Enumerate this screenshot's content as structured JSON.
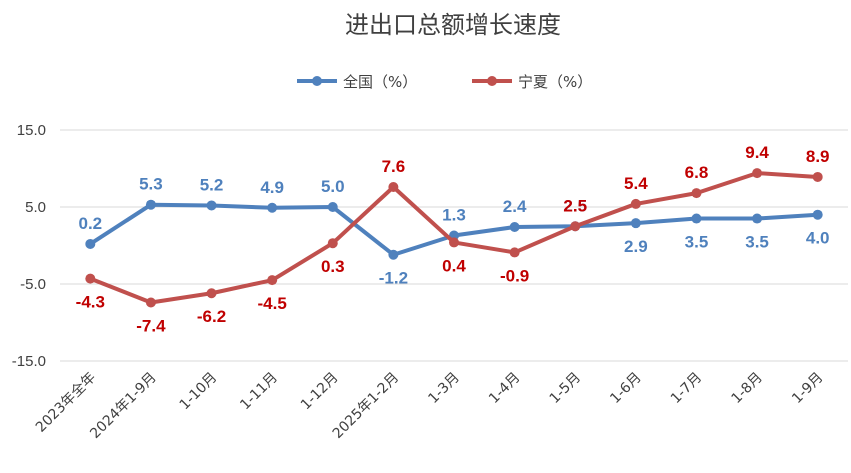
{
  "chart_data": {
    "type": "line",
    "title": "进出口总额增长速度",
    "categories": [
      "2023年全年",
      "2024年1-9月",
      "1-10月",
      "1-11月",
      "1-12月",
      "2025年1-2月",
      "1-3月",
      "1-4月",
      "1-5月",
      "1-6月",
      "1-7月",
      "1-8月",
      "1-9月"
    ],
    "series": [
      {
        "name": "全国（%）",
        "color": "#4f81bd",
        "values": [
          0.2,
          5.3,
          5.2,
          4.9,
          5.0,
          -1.2,
          1.3,
          2.4,
          2.5,
          2.9,
          3.5,
          3.5,
          4.0
        ],
        "labels": [
          "0.2",
          "5.3",
          "5.2",
          "4.9",
          "5.0",
          "-1.2",
          "1.3",
          "2.4",
          "2.5",
          "2.9",
          "3.5",
          "3.5",
          "4.0"
        ]
      },
      {
        "name": "宁夏（%）",
        "color": "#c0504d",
        "values": [
          -4.3,
          -7.4,
          -6.2,
          -4.5,
          0.3,
          7.6,
          0.4,
          -0.9,
          2.5,
          5.4,
          6.8,
          9.4,
          8.9
        ],
        "labels": [
          "-4.3",
          "-7.4",
          "-6.2",
          "-4.5",
          "0.3",
          "7.6",
          "0.4",
          "-0.9",
          "2.5",
          "5.4",
          "6.8",
          "9.4",
          "8.9"
        ]
      }
    ],
    "yticks": [
      "15.0",
      "5.0",
      "-5.0",
      "-15.0"
    ],
    "ylim": [
      -15,
      15
    ],
    "grid": true,
    "legend": "top-center",
    "label_colors": {
      "national": "#4f81bd",
      "ningxia": "#c00000"
    }
  }
}
